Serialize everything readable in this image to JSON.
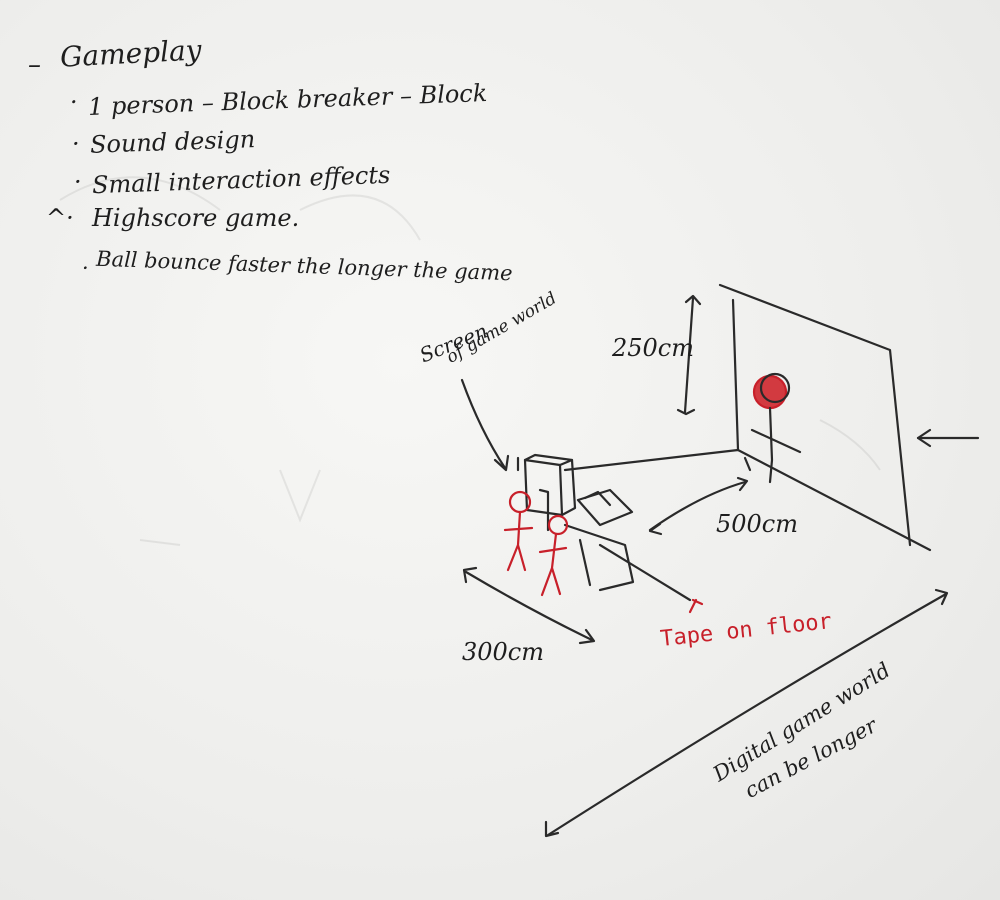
{
  "notes": {
    "heading": "Gameplay",
    "items": [
      "1 person – Block breaker – Block",
      "Sound design",
      "Small interaction effects",
      "Highscore game.",
      "Ball bounce faster the longer the game"
    ]
  },
  "diagram": {
    "screen_label_line1": "Screen",
    "screen_label_line2": "of game world",
    "height_label": "250cm",
    "depth_label": "500cm",
    "width_label": "300cm",
    "tape_label": "Tape on floor",
    "digital_note_line1": "Digital game world",
    "digital_note_line2": "can be longer"
  },
  "colors": {
    "ink": "#2a2a2a",
    "red_marker": "#c8202a",
    "whiteboard": "#f1f1ef"
  }
}
